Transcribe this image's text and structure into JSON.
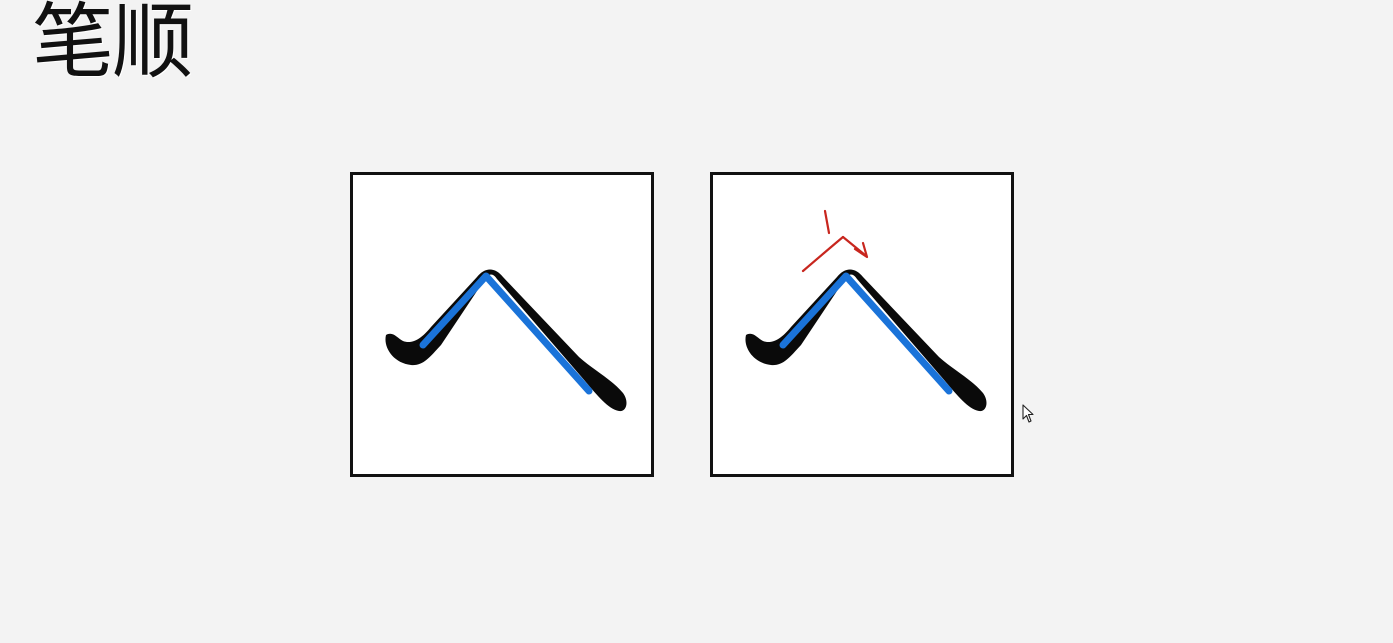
{
  "slide": {
    "title": "笔顺"
  },
  "panels": [
    {
      "name": "stroke-reference",
      "stroke_icon": "brush-stroke-icon",
      "trace_icon": "blue-trace-icon"
    },
    {
      "name": "stroke-order-annotated",
      "stroke_icon": "brush-stroke-icon",
      "trace_icon": "blue-trace-icon",
      "annotation_icon": "red-stroke-order-arrow-icon"
    }
  ],
  "colors": {
    "background": "#f3f3f3",
    "panel_border": "#111111",
    "brush_stroke": "#0a0a0a",
    "trace_line": "#1a73d9",
    "annotation": "#c8261e"
  }
}
